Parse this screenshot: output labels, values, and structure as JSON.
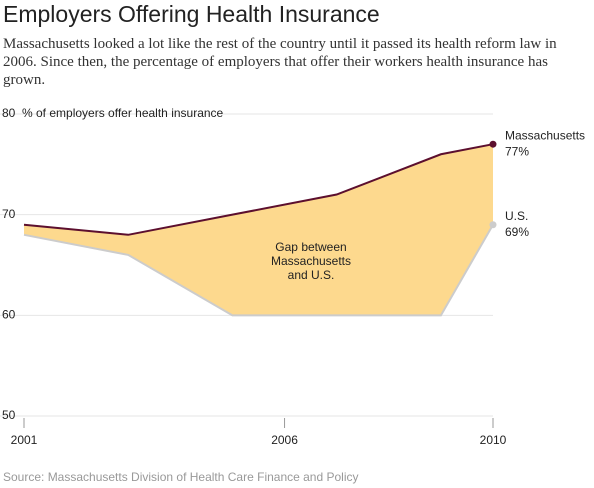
{
  "chart_data": {
    "type": "line",
    "title": "Employers Offering Health Insurance",
    "subtitle": "Massachusetts looked a lot like the rest of the country until it passed its health reform law in 2006. Since then, the percentage of employers that offer their workers health insurance has grown.",
    "y_label": "% of employers offer health insurance",
    "annotation": [
      "Gap between",
      "Massachusetts",
      "and U.S."
    ],
    "source": "Source: Massachusetts Division of Health Care Finance and Policy",
    "x": [
      2001,
      2003,
      2005,
      2007,
      2009,
      2010
    ],
    "series": [
      {
        "name": "Massachusetts",
        "color": "#5c0f2e",
        "values": [
          69,
          68,
          70,
          72,
          76,
          77
        ],
        "value_labels": [
          null,
          null,
          null,
          null,
          null,
          "77%"
        ]
      },
      {
        "name": "U.S.",
        "color": "#cccccc",
        "values": [
          68,
          66,
          60,
          60,
          60,
          69
        ],
        "value_labels": [
          null,
          null,
          null,
          null,
          null,
          "69%"
        ]
      }
    ],
    "area_color": "#fdd98e",
    "xlim": [
      2001,
      2010
    ],
    "xticks": [
      2001,
      2006,
      2010
    ],
    "ylim": [
      50,
      80
    ],
    "yticks": [
      50,
      60,
      70,
      80
    ],
    "grid": true
  }
}
